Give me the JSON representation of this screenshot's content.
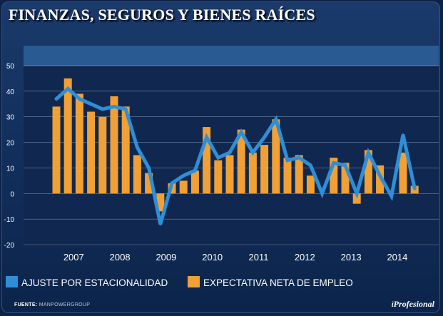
{
  "title": "FINANZAS, SEGUROS Y BIENES RAÍCES",
  "source_label": "FUENTE:",
  "source": "MANPOWERGROUP",
  "logo": {
    "prefix": "i",
    "name": "Profesional"
  },
  "colors": {
    "bar": "#f0a035",
    "line": "#2e8fd8",
    "plot_bg": "#10284f",
    "plot_header": "#2a5a92",
    "grid": "#6e85a8"
  },
  "chart_data": {
    "type": "bar",
    "title": "FINANZAS, SEGUROS Y BIENES RAÍCES",
    "xlabel": "",
    "ylabel": "",
    "ylim": [
      -20,
      50
    ],
    "yticks": [
      50,
      40,
      30,
      20,
      10,
      0,
      -10,
      -20
    ],
    "grid": true,
    "legend_position": "bottom",
    "year_labels": [
      "2007",
      "2008",
      "2009",
      "2010",
      "2011",
      "2012",
      "2013",
      "2014"
    ],
    "categories": [
      "2007 T1",
      "2007 T2",
      "2007 T3",
      "2007 T4",
      "2008 T1",
      "2008 T2",
      "2008 T3",
      "2008 T4",
      "2009 T1",
      "2009 T2",
      "2009 T3",
      "2009 T4",
      "2010 T1",
      "2010 T2",
      "2010 T3",
      "2010 T4",
      "2011 T1",
      "2011 T2",
      "2011 T3",
      "2011 T4",
      "2012 T1",
      "2012 T2",
      "2012 T3",
      "2012 T4",
      "2013 T1",
      "2013 T2",
      "2013 T3",
      "2013 T4",
      "2014 T1",
      "2014 T2",
      "2014 T3",
      "2014 T4"
    ],
    "series": [
      {
        "name": "EXPECTATIVA NETA DE EMPLEO",
        "type": "bar",
        "values": [
          34,
          45,
          39,
          32,
          30,
          38,
          34,
          15,
          8,
          -7,
          4,
          5,
          9,
          26,
          13,
          15,
          25,
          16,
          19,
          29,
          14,
          15,
          7,
          0,
          14,
          12,
          -4,
          17,
          11,
          0,
          16,
          3
        ]
      },
      {
        "name": "AJUSTE POR ESTACIONALIDAD",
        "type": "line",
        "values": [
          37,
          41,
          37,
          35,
          33,
          34,
          33,
          18,
          10,
          -12,
          4,
          7,
          9,
          22,
          14,
          16,
          24,
          16,
          22,
          29,
          13,
          14,
          11,
          0,
          12,
          11,
          0,
          16,
          7,
          -1,
          23,
          2
        ]
      }
    ]
  }
}
